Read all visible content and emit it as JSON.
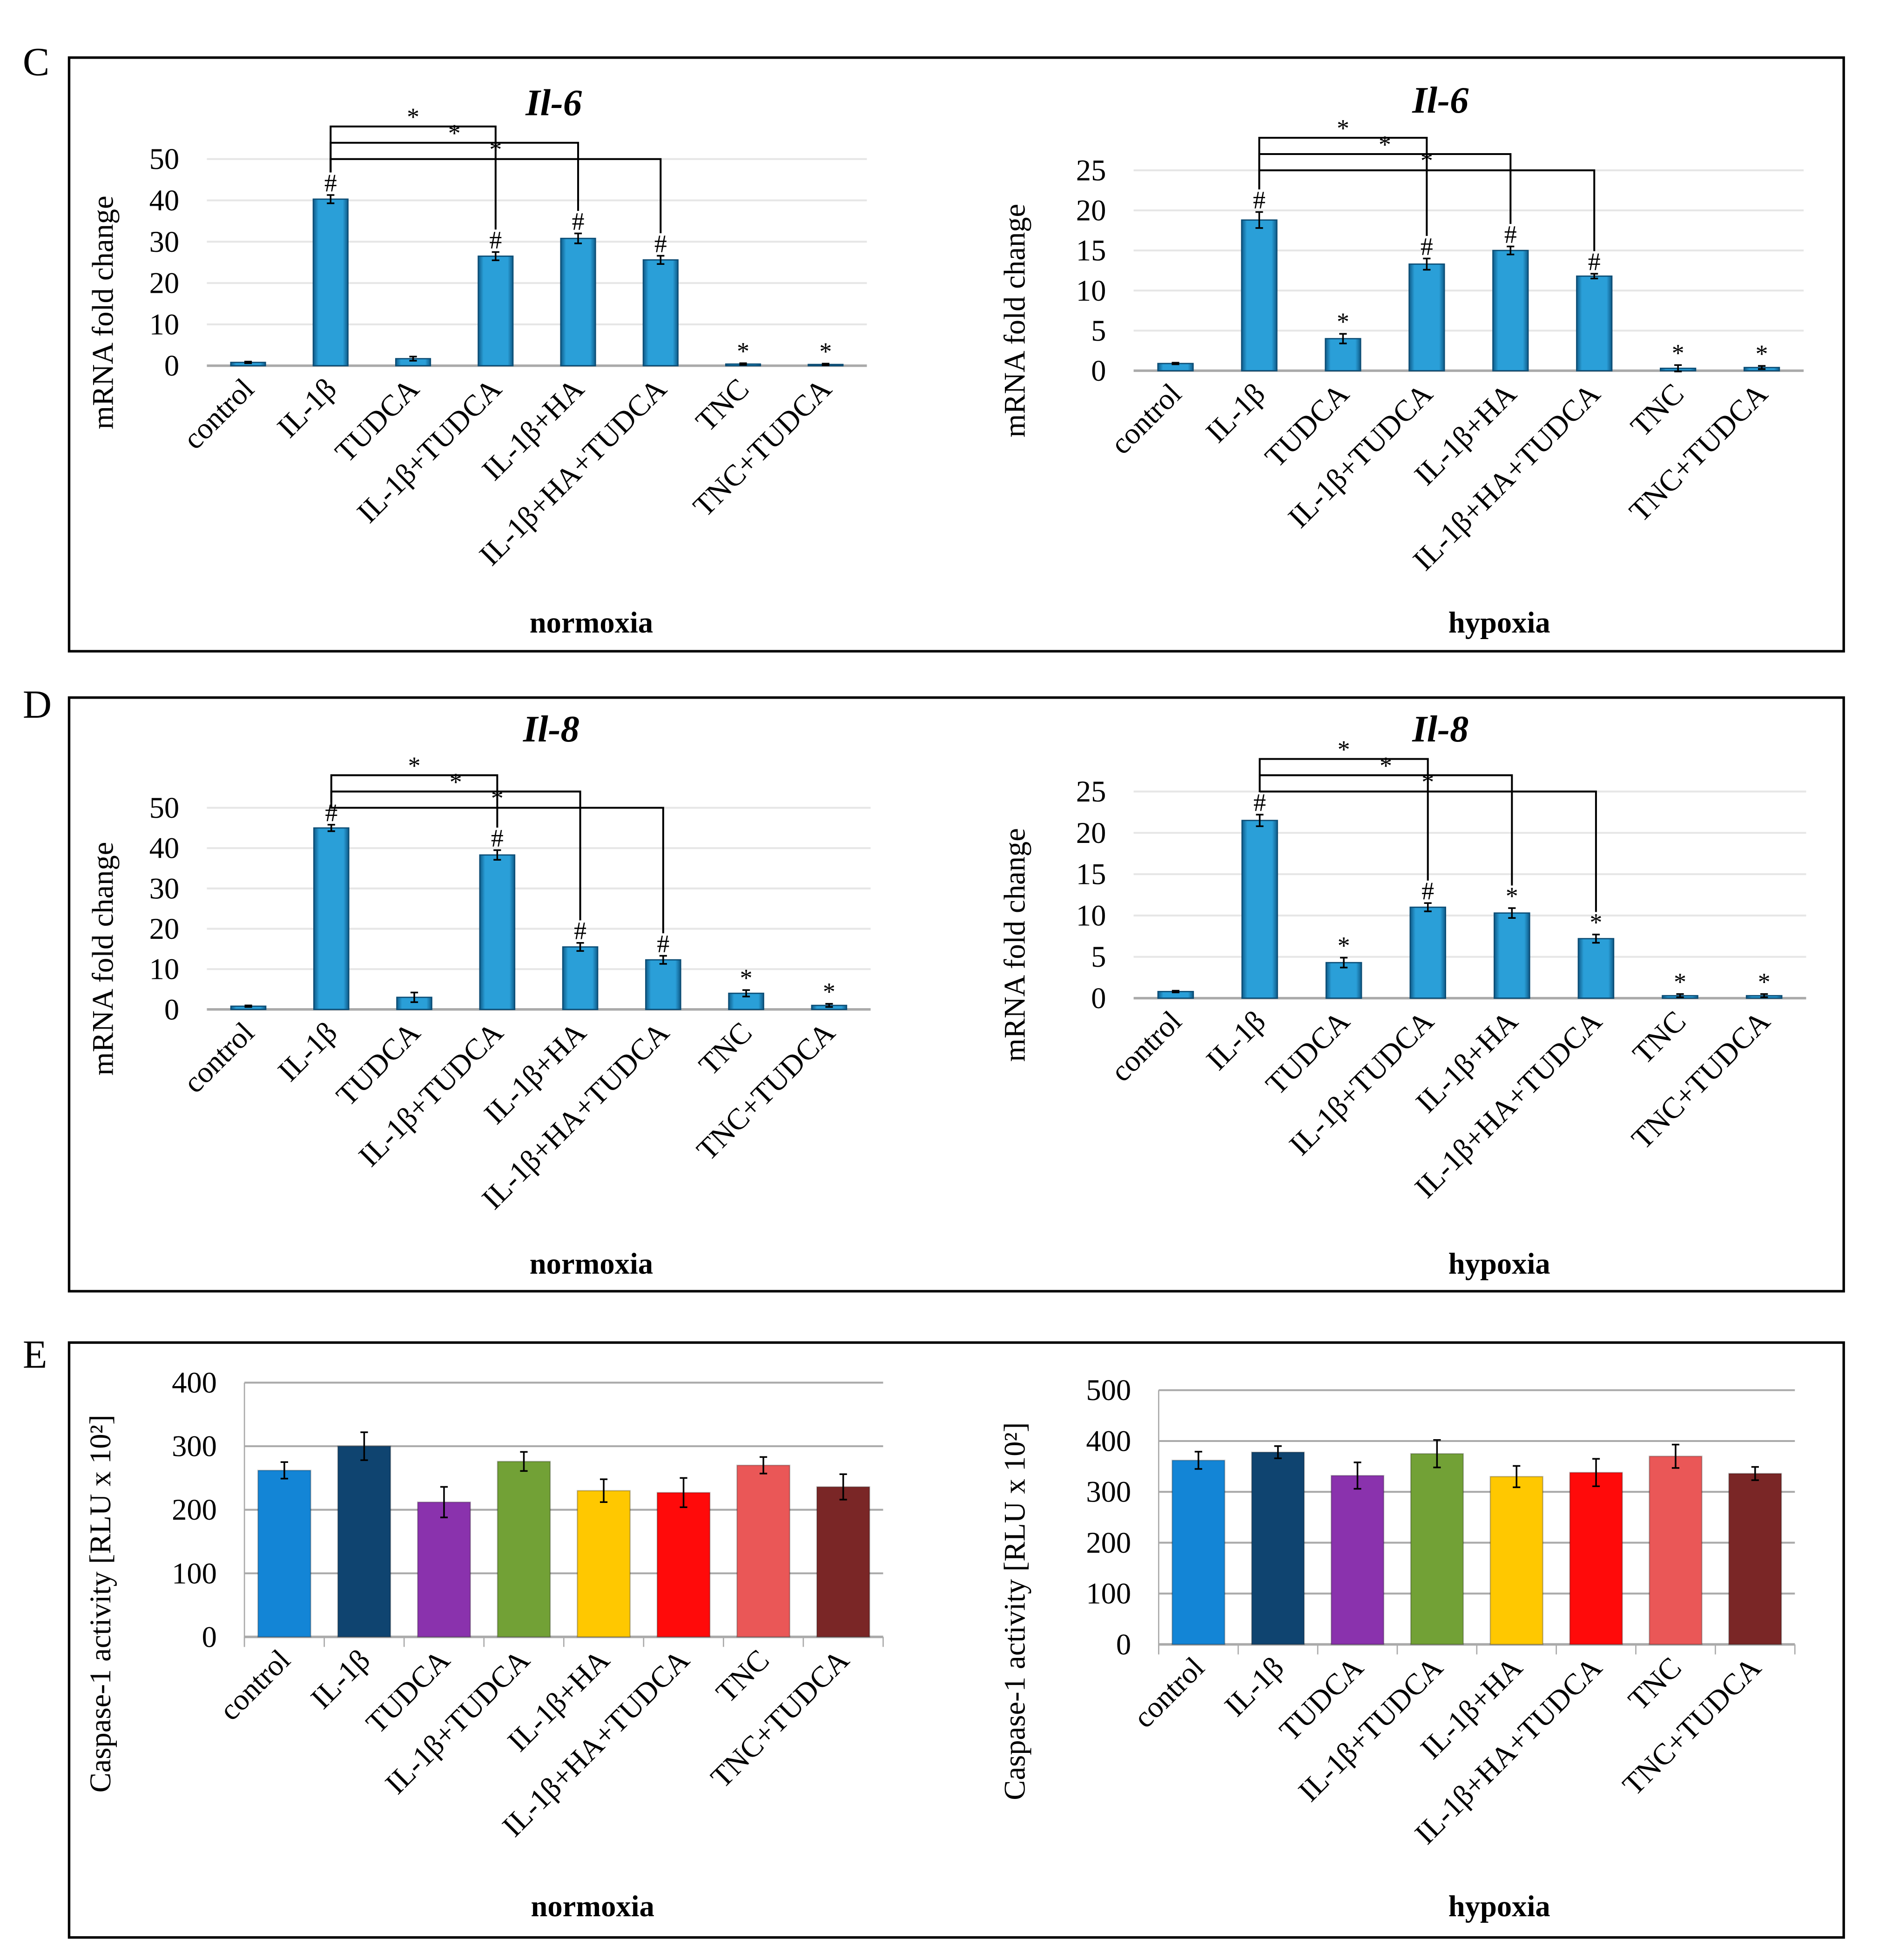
{
  "panel_labels": [
    "C",
    "D",
    "E"
  ],
  "bar_colors": {
    "blue": "#2a9fd8",
    "caspase": [
      "#1385d6",
      "#0f4470",
      "#8a32ad",
      "#72a136",
      "#ffc800",
      "#ff0a0a",
      "#ea5757",
      "#7a2626"
    ]
  },
  "chart_data": [
    {
      "type": "bar",
      "panel": "C",
      "title": "Il-6",
      "condition": "normoxia",
      "ylabel": "mRNA fold change",
      "ylim": [
        0,
        50
      ],
      "yticks": [
        0,
        10,
        20,
        30,
        40,
        50
      ],
      "categories": [
        "control",
        "IL-1β",
        "TUDCA",
        "IL-1β+TUDCA",
        "IL-1β+HA",
        "IL-1β+HA+TUDCA",
        "TNC",
        "TNC+TUDCA"
      ],
      "values": [
        0.8,
        40.3,
        1.7,
        26.5,
        30.8,
        25.6,
        0.4,
        0.3
      ],
      "errors": [
        0.2,
        1.0,
        0.5,
        1.0,
        1.2,
        1.0,
        0.2,
        0.2
      ],
      "markers": [
        "",
        "#",
        "",
        "#",
        "#",
        "#",
        "*",
        "*"
      ],
      "brackets": [
        {
          "from": 1,
          "to": 3,
          "label": "*"
        },
        {
          "from": 1,
          "to": 4,
          "label": "*"
        },
        {
          "from": 1,
          "to": 5,
          "label": "*"
        }
      ]
    },
    {
      "type": "bar",
      "panel": "C",
      "title": "Il-6",
      "condition": "hypoxia",
      "ylabel": "mRNA fold change",
      "ylim": [
        0,
        25
      ],
      "yticks": [
        0,
        5,
        10,
        15,
        20,
        25
      ],
      "categories": [
        "control",
        "IL-1β",
        "TUDCA",
        "IL-1β+TUDCA",
        "IL-1β+HA",
        "IL-1β+HA+TUDCA",
        "TNC",
        "TNC+TUDCA"
      ],
      "values": [
        0.9,
        18.8,
        4.0,
        13.3,
        15.0,
        11.8,
        0.3,
        0.4
      ],
      "errors": [
        0.1,
        1.0,
        0.6,
        0.7,
        0.5,
        0.3,
        0.4,
        0.2
      ],
      "markers": [
        "",
        "#",
        "*",
        "#",
        "#",
        "#",
        "*",
        "*"
      ],
      "brackets": [
        {
          "from": 1,
          "to": 3,
          "label": "*"
        },
        {
          "from": 1,
          "to": 4,
          "label": "*"
        },
        {
          "from": 1,
          "to": 5,
          "label": "*"
        }
      ]
    },
    {
      "type": "bar",
      "panel": "D",
      "title": "Il-8",
      "condition": "normoxia",
      "ylabel": "mRNA fold change",
      "ylim": [
        0,
        50
      ],
      "yticks": [
        0,
        10,
        20,
        30,
        40,
        50
      ],
      "categories": [
        "control",
        "IL-1β",
        "TUDCA",
        "IL-1β+TUDCA",
        "IL-1β+HA",
        "IL-1β+HA+TUDCA",
        "TNC",
        "TNC+TUDCA"
      ],
      "values": [
        0.8,
        45.0,
        3.0,
        38.3,
        15.5,
        12.3,
        4.0,
        1.0
      ],
      "errors": [
        0.2,
        0.8,
        1.2,
        1.2,
        1.0,
        1.0,
        0.8,
        0.4
      ],
      "markers": [
        "",
        "#",
        "",
        "#",
        "#",
        "#",
        "*",
        "*"
      ],
      "brackets": [
        {
          "from": 1,
          "to": 3,
          "label": "*"
        },
        {
          "from": 1,
          "to": 4,
          "label": "*"
        },
        {
          "from": 1,
          "to": 5,
          "label": "*"
        }
      ]
    },
    {
      "type": "bar",
      "panel": "D",
      "title": "Il-8",
      "condition": "hypoxia",
      "ylabel": "mRNA fold change",
      "ylim": [
        0,
        25
      ],
      "yticks": [
        0,
        5,
        10,
        15,
        20,
        25
      ],
      "categories": [
        "control",
        "IL-1β",
        "TUDCA",
        "IL-1β+TUDCA",
        "IL-1β+HA",
        "IL-1β+HA+TUDCA",
        "TNC",
        "TNC+TUDCA"
      ],
      "values": [
        0.8,
        21.5,
        4.3,
        11.0,
        10.3,
        7.2,
        0.3,
        0.3
      ],
      "errors": [
        0.1,
        0.7,
        0.6,
        0.5,
        0.6,
        0.5,
        0.2,
        0.2
      ],
      "markers": [
        "",
        "#",
        "*",
        "#",
        "*",
        "*",
        "*",
        "*"
      ],
      "brackets": [
        {
          "from": 1,
          "to": 3,
          "label": "*"
        },
        {
          "from": 1,
          "to": 4,
          "label": "*"
        },
        {
          "from": 1,
          "to": 5,
          "label": "*"
        }
      ]
    },
    {
      "type": "bar",
      "panel": "E",
      "title": "",
      "condition": "normoxia",
      "ylabel": "Caspase-1 activity [RLU x 10²]",
      "ylim": [
        0,
        400
      ],
      "yticks": [
        0,
        100,
        200,
        300,
        400
      ],
      "categories": [
        "control",
        "IL-1β",
        "TUDCA",
        "IL-1β+TUDCA",
        "IL-1β+HA",
        "IL-1β+HA+TUDCA",
        "TNC",
        "TNC+TUDCA"
      ],
      "values": [
        262,
        300,
        212,
        276,
        230,
        227,
        270,
        236
      ],
      "errors": [
        13,
        22,
        24,
        15,
        18,
        23,
        13,
        20
      ],
      "markers": [
        "",
        "",
        "",
        "",
        "",
        "",
        "",
        ""
      ],
      "brackets": []
    },
    {
      "type": "bar",
      "panel": "E",
      "title": "",
      "condition": "hypoxia",
      "ylabel": "Caspase-1 activity [RLU x 10²]",
      "ylim": [
        0,
        500
      ],
      "yticks": [
        0,
        100,
        200,
        300,
        400,
        500
      ],
      "categories": [
        "control",
        "IL-1β",
        "TUDCA",
        "IL-1β+TUDCA",
        "IL-1β+HA",
        "IL-1β+HA+TUDCA",
        "TNC",
        "TNC+TUDCA"
      ],
      "values": [
        362,
        378,
        332,
        375,
        330,
        338,
        370,
        336
      ],
      "errors": [
        17,
        12,
        26,
        27,
        21,
        27,
        23,
        13
      ],
      "markers": [
        "",
        "",
        "",
        "",
        "",
        "",
        "",
        ""
      ],
      "brackets": []
    }
  ]
}
